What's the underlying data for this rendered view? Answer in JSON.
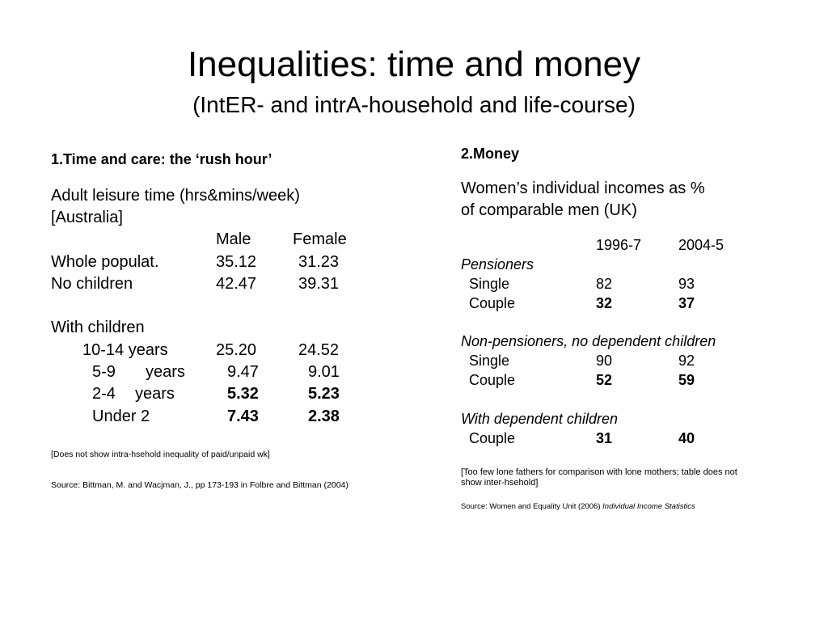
{
  "title": "Inequalities: time and money",
  "subtitle": "(IntER- and intrA-household and life-course)",
  "left": {
    "heading": "1.Time and care: the ‘rush hour’",
    "intro_line1": "Adult leisure time (hrs&mins/week)",
    "intro_line2": "[Australia]",
    "col_male": "Male",
    "col_female": "Female",
    "rows": [
      {
        "label": "Whole populat.",
        "male": "35.12",
        "female": "31.23"
      },
      {
        "label": "No children",
        "male": "42.47",
        "female": "39.31"
      }
    ],
    "with_children_label": "With children",
    "child_rows": [
      {
        "label": "10-14 years",
        "male": "25.20",
        "female": "24.52"
      },
      {
        "label": "5-9",
        "label2": "years",
        "male": "9.47",
        "female": "9.01"
      },
      {
        "label": "2-4",
        "label2": "years",
        "male": "5.32",
        "female": "5.23"
      },
      {
        "label": "Under 2",
        "male": "7.43",
        "female": "2.38"
      }
    ],
    "note": "[Does not show intra-hsehold inequality of paid/unpaid wk]",
    "source": "Source: Bittman, M. and Wacjman, J., pp 173-193  in Folbre and Bittman (2004)"
  },
  "right": {
    "heading": "2.Money",
    "intro_line1": "Women’s individual incomes as %",
    "intro_line2": "of comparable men (UK)",
    "col_1": "1996-7",
    "col_2": "2004-5",
    "group_pensioners": "Pensioners",
    "pensioners": [
      {
        "label": "Single",
        "v1": "82",
        "v2": "93"
      },
      {
        "label": "Couple",
        "v1": "32",
        "v2": "37"
      }
    ],
    "group_nonpensioners": "Non-pensioners, no dependent children",
    "nonpensioners": [
      {
        "label": "Single",
        "v1": "90",
        "v2": "92"
      },
      {
        "label": "Couple",
        "v1": "52",
        "v2": "59"
      }
    ],
    "group_dependent": "With dependent children",
    "dependent": [
      {
        "label": "Couple",
        "v1": "31",
        "v2": "40"
      }
    ],
    "note_line1": "[Too few lone fathers for comparison with lone mothers; table does not",
    "note_line2": "show inter-hsehold]",
    "source_prefix": "Source: Women and Equality Unit (2006) ",
    "source_title": "Individual Income Statistics"
  }
}
